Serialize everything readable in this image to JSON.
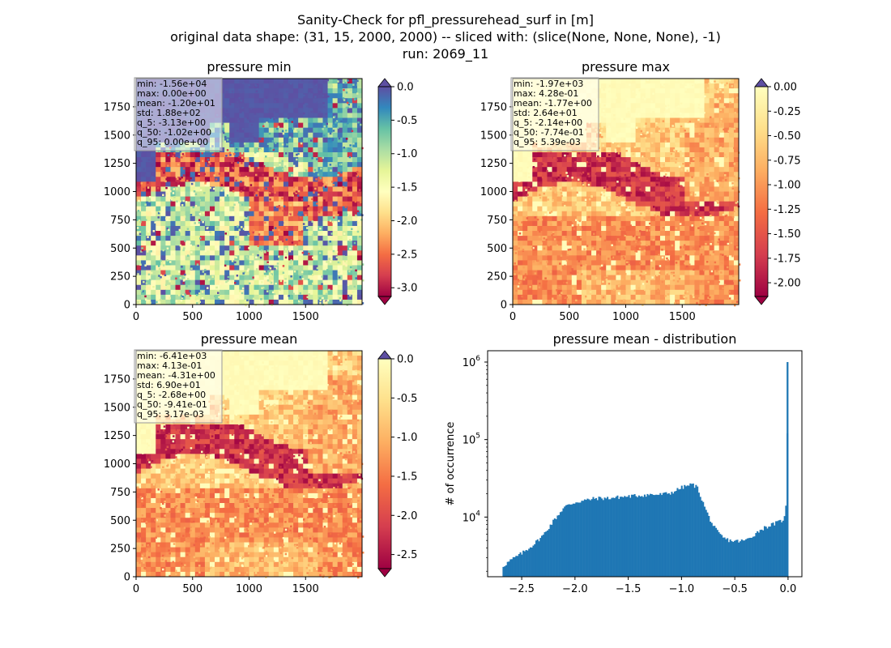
{
  "suptitle": [
    "Sanity-Check for pfl_pressurehead_surf in [m]",
    "original data shape: (31, 15, 2000, 2000) -- sliced with: (slice(None, None, None), -1)",
    "run: 2069_11"
  ],
  "chart_data": [
    {
      "type": "heatmap",
      "title": "pressure min",
      "xlim": [
        0,
        2000
      ],
      "ylim": [
        0,
        2000
      ],
      "xticks": [
        0,
        500,
        1000,
        1500
      ],
      "yticks": [
        0,
        250,
        500,
        750,
        1000,
        1250,
        1500,
        1750
      ],
      "colormap": "Spectral",
      "clim": [
        -3.13,
        0.0
      ],
      "colorbar_ticks": [
        "0.0",
        "-0.5",
        "-1.0",
        "-1.5",
        "-2.0",
        "-2.5",
        "-3.0"
      ],
      "colorbar_tick_values": [
        0.0,
        -0.5,
        -1.0,
        -1.5,
        -2.0,
        -2.5,
        -3.0
      ],
      "colorbar_extend": "both",
      "stats": [
        "min: -1.56e+04",
        "max: 0.00e+00",
        "mean: -1.20e+01",
        "std: 1.88e+02",
        "q_5: -3.13e+00",
        "q_50: -1.02e+00",
        "q_95: 0.00e+00"
      ]
    },
    {
      "type": "heatmap",
      "title": "pressure max",
      "xlim": [
        0,
        2000
      ],
      "ylim": [
        0,
        2000
      ],
      "xticks": [
        0,
        500,
        1000,
        1500
      ],
      "yticks": [
        0,
        250,
        500,
        750,
        1000,
        1250,
        1500,
        1750
      ],
      "colormap": "Spectral",
      "clim": [
        -2.14,
        0.0
      ],
      "colorbar_ticks": [
        "0.00",
        "-0.25",
        "-0.50",
        "-0.75",
        "-1.00",
        "-1.25",
        "-1.50",
        "-1.75",
        "-2.00"
      ],
      "colorbar_tick_values": [
        0.0,
        -0.25,
        -0.5,
        -0.75,
        -1.0,
        -1.25,
        -1.5,
        -1.75,
        -2.0
      ],
      "colorbar_extend": "both",
      "stats": [
        "min: -1.97e+03",
        "max: 4.28e-01",
        "mean: -1.77e+00",
        "std: 2.64e+01",
        "q_5: -2.14e+00",
        "q_50: -7.74e-01",
        "q_95: 5.39e-03"
      ]
    },
    {
      "type": "heatmap",
      "title": "pressure mean",
      "xlim": [
        0,
        2000
      ],
      "ylim": [
        0,
        2000
      ],
      "xticks": [
        0,
        500,
        1000,
        1500
      ],
      "yticks": [
        0,
        250,
        500,
        750,
        1000,
        1250,
        1500,
        1750
      ],
      "colormap": "Spectral",
      "clim": [
        -2.68,
        0.0
      ],
      "colorbar_ticks": [
        "0.0",
        "-0.5",
        "-1.0",
        "-1.5",
        "-2.0",
        "-2.5"
      ],
      "colorbar_tick_values": [
        0.0,
        -0.5,
        -1.0,
        -1.5,
        -2.0,
        -2.5
      ],
      "colorbar_extend": "both",
      "stats": [
        "min: -6.41e+03",
        "max: 4.13e-01",
        "mean: -4.31e+00",
        "std: 6.90e+01",
        "q_5: -2.68e+00",
        "q_50: -9.41e-01",
        "q_95: 3.17e-03"
      ]
    },
    {
      "type": "bar",
      "title": "pressure mean - distribution",
      "xlabel": "",
      "ylabel": "# of occurrence",
      "yscale": "log",
      "xlim": [
        -2.82,
        0.13
      ],
      "ylim": [
        1700,
        1400000
      ],
      "xticks": [
        "-2.5",
        "-2.0",
        "-1.5",
        "-1.0",
        "-0.5",
        "0.0"
      ],
      "xtick_values": [
        -2.5,
        -2.0,
        -1.5,
        -1.0,
        -0.5,
        0.0
      ],
      "yticks": [
        "10^4",
        "10^5",
        "10^6"
      ],
      "ytick_values": [
        10000,
        100000,
        1000000
      ],
      "bar_color": "#1f77b4",
      "x_range": [
        -2.68,
        0.0
      ],
      "bin_width": 0.0134,
      "profile": [
        [
          -2.68,
          2300
        ],
        [
          -2.6,
          2800
        ],
        [
          -2.5,
          3400
        ],
        [
          -2.4,
          4300
        ],
        [
          -2.3,
          5800
        ],
        [
          -2.2,
          9000
        ],
        [
          -2.1,
          13500
        ],
        [
          -2.0,
          15500
        ],
        [
          -1.9,
          16500
        ],
        [
          -1.8,
          17500
        ],
        [
          -1.7,
          17500
        ],
        [
          -1.6,
          18000
        ],
        [
          -1.5,
          18500
        ],
        [
          -1.4,
          19000
        ],
        [
          -1.3,
          19500
        ],
        [
          -1.2,
          19500
        ],
        [
          -1.1,
          20500
        ],
        [
          -1.0,
          24000
        ],
        [
          -0.9,
          26500
        ],
        [
          -0.85,
          24000
        ],
        [
          -0.8,
          15500
        ],
        [
          -0.75,
          10500
        ],
        [
          -0.7,
          7600
        ],
        [
          -0.65,
          6100
        ],
        [
          -0.6,
          5300
        ],
        [
          -0.55,
          5000
        ],
        [
          -0.5,
          4900
        ],
        [
          -0.45,
          4900
        ],
        [
          -0.4,
          5000
        ],
        [
          -0.35,
          5500
        ],
        [
          -0.3,
          6200
        ],
        [
          -0.25,
          7000
        ],
        [
          -0.2,
          7500
        ],
        [
          -0.15,
          8000
        ],
        [
          -0.1,
          8500
        ],
        [
          -0.06,
          9000
        ],
        [
          -0.03,
          10000
        ],
        [
          -0.013,
          17000
        ],
        [
          0.0,
          1000000
        ]
      ]
    }
  ]
}
